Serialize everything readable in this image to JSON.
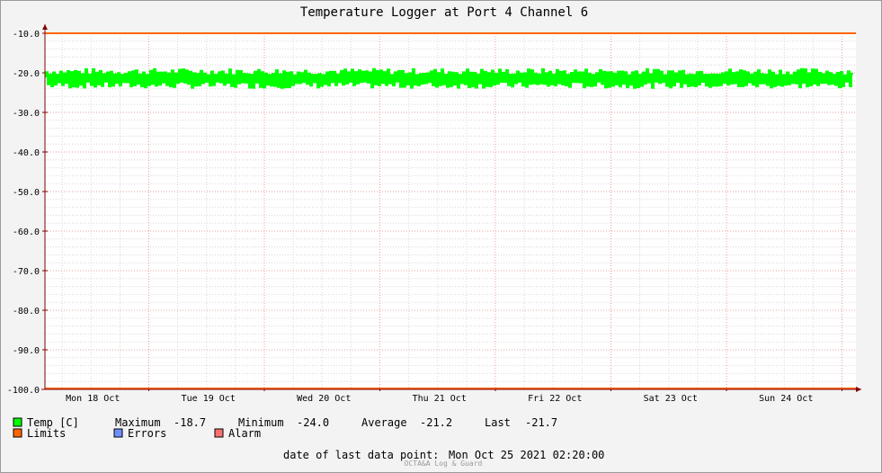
{
  "colors": {
    "temp": "#00ff00",
    "temp_edge": "#00b000",
    "limits": "#ff6600",
    "errors": "#6f8fff",
    "alarm": "#ff7070",
    "grid_major": "#e8a0a0",
    "grid_minor": "#d8d8d8",
    "axis": "#800000"
  },
  "chart_data": {
    "type": "line",
    "title": "Temperature Logger at Port 4 Channel 6",
    "ylim": [
      -100.0,
      -10.0
    ],
    "y_ticks": [
      "-10.0",
      "-20.0",
      "-30.0",
      "-40.0",
      "-50.0",
      "-60.0",
      "-70.0",
      "-80.0",
      "-90.0",
      "-100.0"
    ],
    "x_ticks": [
      "Mon 18 Oct",
      "Tue 19 Oct",
      "Wed 20 Oct",
      "Thu 21 Oct",
      "Fri 22 Oct",
      "Sat 23 Oct",
      "Sun 24 Oct"
    ],
    "grid": true,
    "limits": {
      "upper": -10.0,
      "lower": -100.0
    },
    "series": [
      {
        "name": "Temp [C]",
        "band_min": -24.0,
        "band_max": -18.7,
        "typical_min": -23.0,
        "typical_max": -19.8,
        "average": -21.2
      }
    ]
  },
  "legend": {
    "temp": "Temp [C]",
    "maximum_label": "Maximum",
    "maximum_value": "-18.7",
    "minimum_label": "Minimum",
    "minimum_value": "-24.0",
    "average_label": "Average",
    "average_value": "-21.2",
    "last_label": "Last",
    "last_value": "-21.7",
    "limits": "Limits",
    "errors": "Errors",
    "alarm": "Alarm"
  },
  "footer": {
    "last_point_label": "date of last data point:",
    "last_point_value": "Mon Oct 25 2021 02:20:00",
    "watermark": "OCTA&A Log & Guard"
  }
}
